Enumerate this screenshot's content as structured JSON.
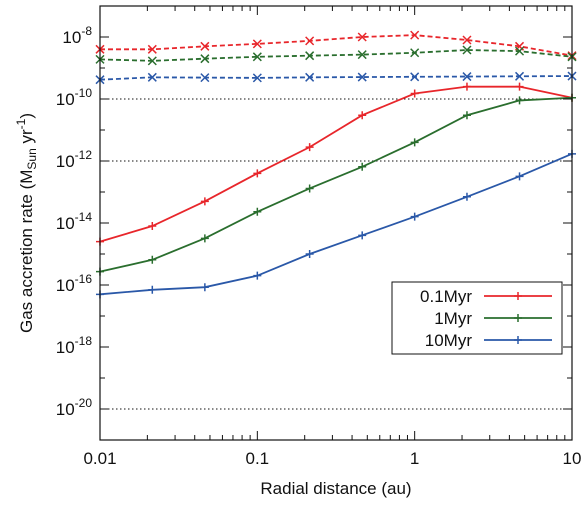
{
  "chart_data": {
    "type": "line",
    "xlabel": "Radial distance (au)",
    "ylabel_parts": {
      "base": "Gas accretion rate (M",
      "sub": "Sun",
      "mid": " yr",
      "sup": "-1",
      "end": ")"
    },
    "x_scale": "log",
    "y_scale": "log",
    "xlim": [
      0.01,
      10
    ],
    "ylim": [
      1e-21,
      1e-07
    ],
    "x_ticks": [
      {
        "value": 0.01,
        "label": "0.01"
      },
      {
        "value": 0.1,
        "label": "0.1"
      },
      {
        "value": 1,
        "label": "1"
      },
      {
        "value": 10,
        "label": "10"
      }
    ],
    "y_ticks": [
      {
        "exp": -8,
        "base": "10",
        "sup": "-8"
      },
      {
        "exp": -10,
        "base": "10",
        "sup": "-10"
      },
      {
        "exp": -12,
        "base": "10",
        "sup": "-12"
      },
      {
        "exp": -14,
        "base": "10",
        "sup": "-14"
      },
      {
        "exp": -16,
        "base": "10",
        "sup": "-16"
      },
      {
        "exp": -18,
        "base": "10",
        "sup": "-18"
      },
      {
        "exp": -20,
        "base": "10",
        "sup": "-20"
      }
    ],
    "reference_lines_y_exp": [
      -10,
      -12,
      -20
    ],
    "legend_placement": "right",
    "x": [
      0.01,
      0.0215,
      0.0464,
      0.1,
      0.215,
      0.464,
      1,
      2.15,
      4.64,
      10
    ],
    "series": [
      {
        "name": "0.1Myr",
        "color": "#e8262b",
        "style": "solid",
        "marker": "plus",
        "in_legend": true,
        "values": [
          2.5e-15,
          8e-15,
          5e-14,
          4e-13,
          2.8e-12,
          3e-11,
          1.5e-10,
          2.5e-10,
          2.5e-10,
          1.1e-10
        ]
      },
      {
        "name": "1Myr",
        "color": "#2a6e2e",
        "style": "solid",
        "marker": "plus",
        "in_legend": true,
        "values": [
          2.7e-16,
          6.5e-16,
          3.2e-15,
          2.3e-14,
          1.3e-13,
          6.5e-13,
          4e-12,
          3e-11,
          9e-11,
          1.1e-10
        ]
      },
      {
        "name": "10Myr",
        "color": "#2a58a8",
        "style": "solid",
        "marker": "plus",
        "in_legend": true,
        "values": [
          5e-17,
          7e-17,
          8.5e-17,
          2e-16,
          1e-15,
          4e-15,
          1.6e-14,
          7e-14,
          3.2e-13,
          1.7e-12
        ]
      },
      {
        "color": "#e8262b",
        "style": "dashed",
        "marker": "x",
        "in_legend": false,
        "values": [
          4e-09,
          4e-09,
          5e-09,
          6e-09,
          7.5e-09,
          1e-08,
          1.15e-08,
          8e-09,
          5e-09,
          2.5e-09
        ]
      },
      {
        "color": "#2a6e2e",
        "style": "dashed",
        "marker": "x",
        "in_legend": false,
        "values": [
          1.9e-09,
          1.7e-09,
          2e-09,
          2.3e-09,
          2.5e-09,
          2.7e-09,
          3.1e-09,
          3.8e-09,
          3.5e-09,
          2.3e-09
        ]
      },
      {
        "color": "#2a58a8",
        "style": "dashed",
        "marker": "x",
        "in_legend": false,
        "values": [
          4.2e-10,
          5e-10,
          4.9e-10,
          4.8e-10,
          5e-10,
          5.1e-10,
          5.2e-10,
          5.3e-10,
          5.4e-10,
          5.5e-10
        ]
      }
    ]
  }
}
